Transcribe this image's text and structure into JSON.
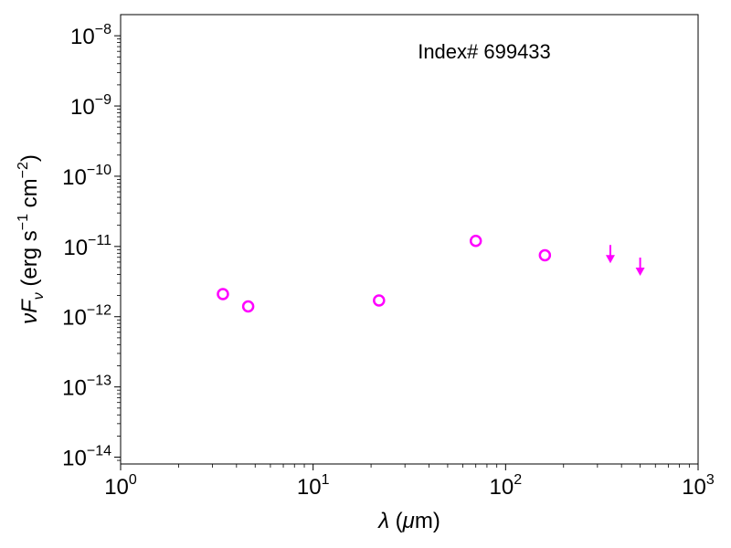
{
  "chart_data": {
    "type": "scatter",
    "annotation": "Index# 699433",
    "xlabel": "λ (μm)",
    "ylabel": "νF_ν (erg s^-1 cm^-2)",
    "xscale": "log",
    "yscale": "log",
    "xlim": [
      1,
      1000
    ],
    "ylim": [
      8e-15,
      2e-08
    ],
    "x_ticks": [
      {
        "value": 1,
        "base": "10",
        "exp": "0"
      },
      {
        "value": 10,
        "base": "10",
        "exp": "1"
      },
      {
        "value": 100,
        "base": "10",
        "exp": "2"
      },
      {
        "value": 1000,
        "base": "10",
        "exp": "3"
      }
    ],
    "y_ticks": [
      {
        "value": 1e-14,
        "base": "10",
        "exp": "−14"
      },
      {
        "value": 1e-13,
        "base": "10",
        "exp": "−13"
      },
      {
        "value": 1e-12,
        "base": "10",
        "exp": "−12"
      },
      {
        "value": 1e-11,
        "base": "10",
        "exp": "−11"
      },
      {
        "value": 1e-10,
        "base": "10",
        "exp": "−10"
      },
      {
        "value": 1e-09,
        "base": "10",
        "exp": "−9"
      },
      {
        "value": 1e-08,
        "base": "10",
        "exp": "−8"
      }
    ],
    "grid": false,
    "marker_color": "#ff00ff",
    "detections": [
      {
        "x": 3.4,
        "y": 2.1e-12
      },
      {
        "x": 4.6,
        "y": 1.4e-12
      },
      {
        "x": 22,
        "y": 1.7e-12
      },
      {
        "x": 70,
        "y": 1.2e-11
      },
      {
        "x": 160,
        "y": 7.5e-12
      }
    ],
    "upper_limits": [
      {
        "x": 350,
        "y": 6.5e-12
      },
      {
        "x": 500,
        "y": 4.3e-12
      }
    ]
  }
}
